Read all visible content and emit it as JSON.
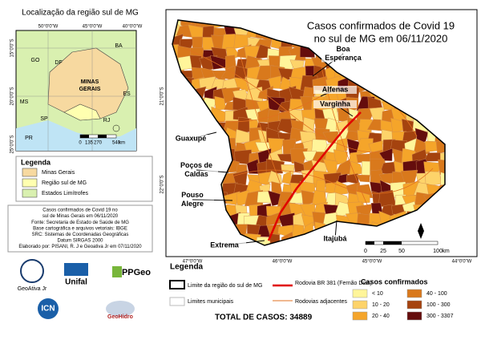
{
  "inset": {
    "title": "Localização da região sul de MG",
    "lon_labels": [
      "50°0'0\"W",
      "45°0'0\"W",
      "40°0'0\"W"
    ],
    "lat_labels": [
      "15°0'0\"S",
      "20°0'0\"S",
      "25°0'0\"S"
    ],
    "states": [
      "BA",
      "GO",
      "DF",
      "ES",
      "MS",
      "SP",
      "RJ",
      "PR"
    ],
    "minas_label": [
      "MINAS",
      "GERAIS"
    ],
    "scale": [
      "0",
      "135",
      "270",
      "540",
      "km"
    ]
  },
  "inset_legend": {
    "title": "Legenda",
    "items": [
      {
        "label": "Minas Gerais",
        "color": "#f7d9a0"
      },
      {
        "label": "Região sul de MG",
        "color": "#ffffb0"
      },
      {
        "label": "Estados Limítrofes",
        "color": "#d9f0b0"
      }
    ]
  },
  "source": [
    "Casos confirmados de Covid 19 no",
    "sul de Minas Gerais em 06/11/2020",
    "Fonte: Secretaria de Estado de Saúde de MG",
    "Base cartográfica e arquivos vetoriais: IBGE",
    "SRC: Sistemas de Coordenadas Geográficas",
    "Datum SIRGAS 2000",
    "Elaborado por: PISANI, R. J e Geoativa Jr em 07/11/2020"
  ],
  "logos": [
    "GeoAtiva Jr",
    "Unifal",
    "PPGeo",
    "ICN",
    "GeoHidro"
  ],
  "map": {
    "title": [
      "Casos confirmados de Covid 19",
      "no sul de MG em 06/11/2020"
    ],
    "cities": [
      [
        "Boa",
        "Esperança"
      ],
      [
        "Alfenas"
      ],
      [
        "Varginha"
      ],
      [
        "Guaxupé"
      ],
      [
        "Poços de",
        "Caldas"
      ],
      [
        "Pouso",
        "Alegre"
      ],
      [
        "Extrema"
      ],
      [
        "Itajubá"
      ]
    ],
    "lon_labels": [
      "47°0'0\"W",
      "46°0'0\"W",
      "45°0'0\"W",
      "44°0'0\"W"
    ],
    "lat_labels": [
      "21°0'0\"S",
      "22°0'0\"S"
    ],
    "scale": [
      "0",
      "25",
      "50",
      "100",
      "km"
    ]
  },
  "legend": {
    "title": "Legenda",
    "items": [
      "Limite da região do sul de MG",
      "Limites municipais",
      "Rodovia BR 381 (Fernão Dias)",
      "Rodovias adjacentes"
    ],
    "classes_title": "Casos confirmados",
    "classes": [
      {
        "label": "< 10",
        "color": "#fff59a"
      },
      {
        "label": "10 - 20",
        "color": "#fdd36a"
      },
      {
        "label": "20 - 40",
        "color": "#f5a52a"
      },
      {
        "label": "40 - 100",
        "color": "#d9791c"
      },
      {
        "label": "100 - 300",
        "color": "#a5430f"
      },
      {
        "label": "300 - 3307",
        "color": "#650d0d"
      }
    ],
    "total": "TOTAL DE CASOS: 34889"
  }
}
